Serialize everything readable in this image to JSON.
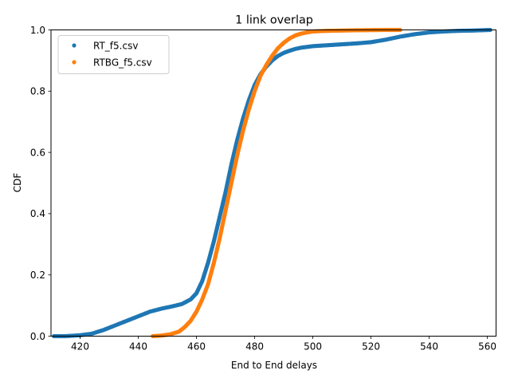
{
  "chart_data": {
    "type": "scatter",
    "title": "1 link overlap",
    "xlabel": "End to End delays",
    "ylabel": "CDF",
    "xlim": [
      410,
      563
    ],
    "ylim": [
      0,
      1
    ],
    "xticks": [
      420,
      440,
      460,
      480,
      500,
      520,
      540,
      560
    ],
    "yticks": [
      0.0,
      0.2,
      0.4,
      0.6,
      0.8,
      1.0
    ],
    "xtick_labels": [
      "420",
      "440",
      "460",
      "480",
      "500",
      "520",
      "540",
      "560"
    ],
    "ytick_labels": [
      "0.0",
      "0.2",
      "0.4",
      "0.6",
      "0.8",
      "1.0"
    ],
    "grid": false,
    "legend_position": "upper-left",
    "series": [
      {
        "name": "RT_f5.csv",
        "color": "#1f77b4",
        "x": [
          411,
          415,
          420,
          424,
          428,
          432,
          436,
          440,
          444,
          448,
          452,
          455,
          458,
          460,
          462,
          464,
          466,
          468,
          470,
          472,
          474,
          476,
          478,
          480,
          482,
          484,
          486,
          488,
          490,
          492,
          494,
          496,
          500,
          505,
          510,
          515,
          520,
          525,
          530,
          535,
          540,
          545,
          550,
          555,
          561
        ],
        "y": [
          0.0,
          0.0,
          0.003,
          0.008,
          0.02,
          0.035,
          0.05,
          0.065,
          0.08,
          0.09,
          0.098,
          0.105,
          0.12,
          0.14,
          0.18,
          0.24,
          0.31,
          0.39,
          0.47,
          0.56,
          0.64,
          0.71,
          0.77,
          0.82,
          0.855,
          0.88,
          0.9,
          0.915,
          0.925,
          0.932,
          0.938,
          0.942,
          0.947,
          0.95,
          0.953,
          0.956,
          0.96,
          0.968,
          0.978,
          0.986,
          0.992,
          0.995,
          0.997,
          0.998,
          1.0
        ]
      },
      {
        "name": "RTBG_f5.csv",
        "color": "#ff7f0e",
        "x": [
          445,
          448,
          451,
          454,
          456,
          458,
          460,
          462,
          464,
          466,
          468,
          470,
          472,
          474,
          476,
          478,
          480,
          482,
          484,
          486,
          488,
          490,
          492,
          494,
          496,
          498,
          500,
          505,
          510,
          515,
          520,
          525,
          530
        ],
        "y": [
          0.0,
          0.002,
          0.006,
          0.015,
          0.03,
          0.05,
          0.08,
          0.12,
          0.17,
          0.24,
          0.32,
          0.41,
          0.5,
          0.59,
          0.67,
          0.74,
          0.8,
          0.85,
          0.885,
          0.915,
          0.94,
          0.958,
          0.972,
          0.982,
          0.988,
          0.992,
          0.995,
          0.997,
          0.998,
          0.999,
          0.9995,
          1.0,
          1.0
        ]
      }
    ]
  }
}
